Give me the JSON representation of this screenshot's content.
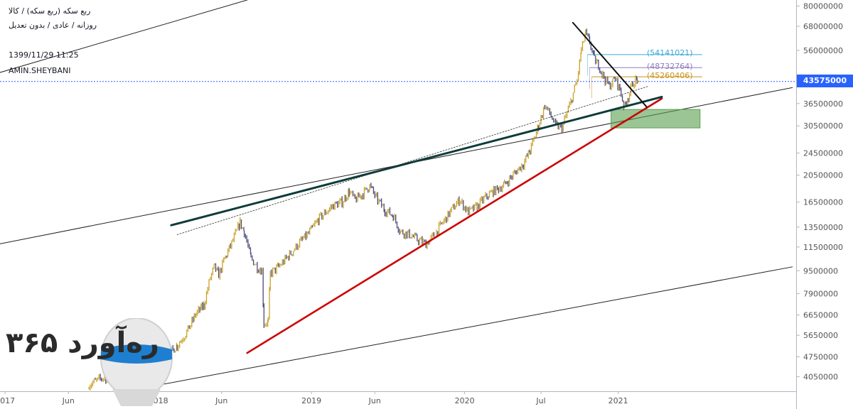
{
  "chart_info": {
    "ticker": "ربع سکه (ربع سکه) / کالا",
    "ticker_sub": "روزانه / عادی / بدون تعدیل",
    "timestamp": "1399/11/29 11:25",
    "author": "AMIN.SHEYBANI"
  },
  "current_price": "43575000",
  "levels": [
    "(54141021)",
    "(48732764)",
    "(45260406)"
  ],
  "watermark": {
    "text": "ره‌آورد ۳۶۵"
  },
  "colors": {
    "candle_up": "#c9a227",
    "candle_down": "#4a4a7a",
    "support": "#cc0000",
    "resistance": "#0d3b3b",
    "zone": "#5a9e4f",
    "price_line": "#2962ff",
    "level_blue": "#3aa9d6",
    "level_purple": "#8e7cc3",
    "level_orange": "#c9901a"
  },
  "chart_data": {
    "type": "line",
    "y_scale": "log",
    "ylim": [
      3600000,
      84000000
    ],
    "y_ticks": [
      80000000,
      68000000,
      56000000,
      43500000,
      36500000,
      30500000,
      24500000,
      20500000,
      16500000,
      13500000,
      11500000,
      9500000,
      7900000,
      6650000,
      5650000,
      4750000,
      4050000
    ],
    "y_tick_labels": [
      "80000000",
      "68000000",
      "56000000",
      "43500000",
      "36500000",
      "30500000",
      "24500000",
      "20500000",
      "16500000",
      "13500000",
      "11500000",
      "9500000",
      "7900000",
      "6650000",
      "5650000",
      "4750000",
      "4050000"
    ],
    "x_ticks": [
      "2017-01-01",
      "2017-06-01",
      "2018-01-01",
      "2018-06-01",
      "2019-01-01",
      "2019-06-01",
      "2020-01-01",
      "2020-07-01",
      "2021-01-01"
    ],
    "x_tick_labels": [
      "2017",
      "Jun",
      "2018",
      "Jun",
      "2019",
      "Jun",
      "2020",
      "Jul",
      "2021"
    ],
    "xlim": [
      "2016-12-20",
      "2022-03-01"
    ],
    "series": [
      {
        "values": [
          [
            "2017-07-20",
            3800000
          ],
          [
            "2017-08-20",
            4000000
          ],
          [
            "2017-09-20",
            3950000
          ],
          [
            "2017-11-01",
            4200000
          ],
          [
            "2017-12-15",
            4500000
          ],
          [
            "2018-01-15",
            4700000
          ],
          [
            "2018-02-15",
            5200000
          ],
          [
            "2018-03-10",
            5800000
          ],
          [
            "2018-04-01",
            6700000
          ],
          [
            "2018-04-20",
            7200000
          ],
          [
            "2018-05-05",
            9000000
          ],
          [
            "2018-05-15",
            9800000
          ],
          [
            "2018-05-25",
            9200000
          ],
          [
            "2018-06-10",
            10600000
          ],
          [
            "2018-07-01",
            12400000
          ],
          [
            "2018-07-15",
            14000000
          ],
          [
            "2018-07-25",
            13000000
          ],
          [
            "2018-08-10",
            10500000
          ],
          [
            "2018-08-25",
            9800000
          ],
          [
            "2018-09-05",
            9500000
          ],
          [
            "2018-09-10",
            6200000
          ],
          [
            "2018-09-20",
            6300000
          ],
          [
            "2018-09-25",
            9300000
          ],
          [
            "2018-10-15",
            9800000
          ],
          [
            "2018-11-10",
            10800000
          ],
          [
            "2018-12-01",
            11800000
          ],
          [
            "2018-12-25",
            12800000
          ],
          [
            "2019-01-20",
            14500000
          ],
          [
            "2019-02-20",
            16000000
          ],
          [
            "2019-03-15",
            16500000
          ],
          [
            "2019-04-01",
            18000000
          ],
          [
            "2019-04-15",
            16800000
          ],
          [
            "2019-05-01",
            17500000
          ],
          [
            "2019-05-20",
            18800000
          ],
          [
            "2019-06-05",
            17000000
          ],
          [
            "2019-06-25",
            15500000
          ],
          [
            "2019-07-15",
            14800000
          ],
          [
            "2019-08-01",
            13000000
          ],
          [
            "2019-08-20",
            12800000
          ],
          [
            "2019-09-10",
            12200000
          ],
          [
            "2019-10-01",
            11800000
          ],
          [
            "2019-10-20",
            12600000
          ],
          [
            "2019-11-10",
            14000000
          ],
          [
            "2019-12-01",
            15500000
          ],
          [
            "2019-12-20",
            16800000
          ],
          [
            "2020-01-10",
            15200000
          ],
          [
            "2020-02-01",
            16000000
          ],
          [
            "2020-02-20",
            17200000
          ],
          [
            "2020-03-10",
            18000000
          ],
          [
            "2020-04-05",
            19000000
          ],
          [
            "2020-05-01",
            21000000
          ],
          [
            "2020-05-20",
            22500000
          ],
          [
            "2020-06-05",
            25000000
          ],
          [
            "2020-06-25",
            30500000
          ],
          [
            "2020-07-10",
            36000000
          ],
          [
            "2020-07-25",
            33000000
          ],
          [
            "2020-08-05",
            30500000
          ],
          [
            "2020-08-20",
            30000000
          ],
          [
            "2020-09-10",
            37000000
          ],
          [
            "2020-09-25",
            44000000
          ],
          [
            "2020-10-05",
            56000000
          ],
          [
            "2020-10-15",
            64000000
          ],
          [
            "2020-10-25",
            60000000
          ],
          [
            "2020-11-05",
            52000000
          ],
          [
            "2020-11-15",
            50000000
          ],
          [
            "2020-11-25",
            46000000
          ],
          [
            "2020-12-10",
            42000000
          ],
          [
            "2020-12-25",
            44500000
          ],
          [
            "2021-01-05",
            41000000
          ],
          [
            "2021-01-15",
            35500000
          ],
          [
            "2021-01-25",
            38500000
          ],
          [
            "2021-02-05",
            43000000
          ],
          [
            "2021-02-15",
            44500000
          ],
          [
            "2021-02-18",
            43575000
          ]
        ]
      }
    ],
    "trend_lines": [
      {
        "name": "support",
        "from": [
          "2018-08-01",
          4900000
        ],
        "to": [
          "2021-04-15",
          38000000
        ]
      },
      {
        "name": "resistance",
        "from": [
          "2018-02-01",
          13700000
        ],
        "to": [
          "2021-04-15",
          38500000
        ]
      },
      {
        "name": "dotted",
        "from": [
          "2018-02-15",
          12700000
        ],
        "to": [
          "2021-03-15",
          42000000
        ]
      },
      {
        "name": "downtrend",
        "from": [
          "2020-09-15",
          70000000
        ],
        "to": [
          "2021-03-10",
          35500000
        ]
      },
      {
        "name": "channel-upper",
        "from": [
          "2016-12-01",
          46000000
        ],
        "to": [
          "2018-08-01",
          84000000
        ]
      },
      {
        "name": "channel-middle",
        "from": [
          "2016-12-20",
          11800000
        ],
        "to": [
          "2022-02-20",
          41500000
        ]
      },
      {
        "name": "channel-lower",
        "from": [
          "2017-10-15",
          3600000
        ],
        "to": [
          "2022-02-20",
          9800000
        ]
      }
    ],
    "zone": {
      "x": [
        "2020-12-15",
        "2021-07-15"
      ],
      "y": [
        30000000,
        34800000
      ]
    },
    "fib_levels": [
      {
        "label": "(54141021)",
        "value": 54141021,
        "from": "2020-10-20",
        "to": "2021-07-20"
      },
      {
        "label": "(48732764)",
        "value": 48732764,
        "from": "2020-10-25",
        "to": "2021-07-20"
      },
      {
        "label": "(45260406)",
        "value": 45260406,
        "from": "2020-10-30",
        "to": "2021-07-20"
      }
    ],
    "last_price": 43575000
  }
}
